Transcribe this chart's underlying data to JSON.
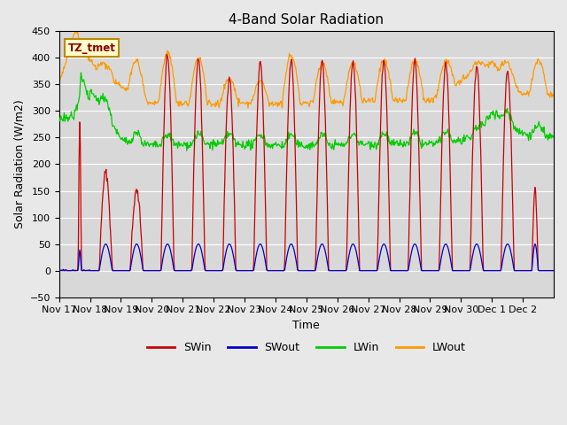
{
  "title": "4-Band Solar Radiation",
  "xlabel": "Time",
  "ylabel": "Solar Radiation (W/m2)",
  "ylim": [
    -50,
    450
  ],
  "annotation": "TZ_tmet",
  "background_color": "#e8e8e8",
  "plot_bg_color": "#d8d8d8",
  "legend_colors": [
    "#cc0000",
    "#0000cc",
    "#00cc00",
    "#ff9900"
  ],
  "legend_labels": [
    "SWin",
    "SWout",
    "LWin",
    "LWout"
  ],
  "x_tick_labels": [
    "Nov 17",
    "Nov 18",
    "Nov 19",
    "Nov 20",
    "Nov 21",
    "Nov 22",
    "Nov 23",
    "Nov 24",
    "Nov 25",
    "Nov 26",
    "Nov 27",
    "Nov 28",
    "Nov 29",
    "Nov 30",
    "Dec 1",
    "Dec 2"
  ],
  "n_days": 16,
  "yticks": [
    -50,
    0,
    50,
    100,
    150,
    200,
    250,
    300,
    350,
    400,
    450
  ]
}
